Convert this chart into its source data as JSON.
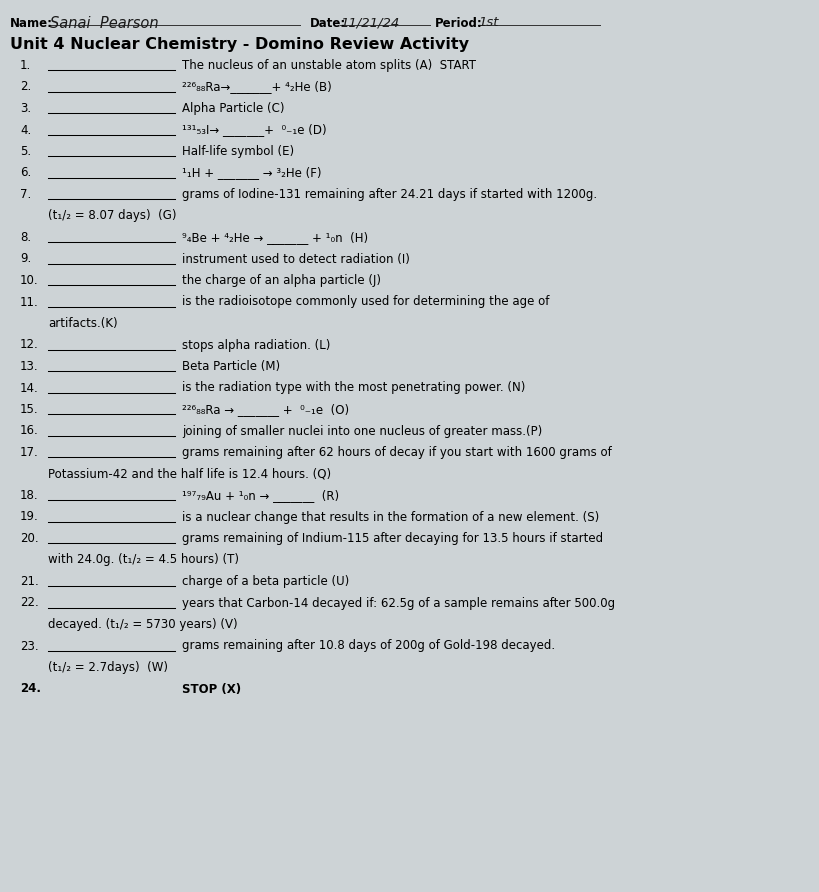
{
  "bg_color": "#cdd3d6",
  "title": "Unit 4 Nuclear Chemistry - Domino Review Activity",
  "name_handwritten": "Sanai  Pearson",
  "date_handwritten": "11/21/24",
  "period_handwritten": "1st",
  "items": [
    {
      "n": "1.",
      "text": "The nucleus of an unstable atom splits (A)  START",
      "has_blank": true,
      "cont": null
    },
    {
      "n": "2.",
      "text": "²²⁶₈₈Ra→_______+ ⁴₂He (B)",
      "has_blank": true,
      "cont": null
    },
    {
      "n": "3.",
      "text": "Alpha Particle (C)",
      "has_blank": true,
      "cont": null
    },
    {
      "n": "4.",
      "text": "¹³¹₅₃I→ _______+  ⁰₋₁e (D)",
      "has_blank": true,
      "cont": null
    },
    {
      "n": "5.",
      "text": "Half-life symbol (E)",
      "has_blank": true,
      "cont": null
    },
    {
      "n": "6.",
      "text": "¹₁H + _______ → ³₂He (F)",
      "has_blank": true,
      "cont": null
    },
    {
      "n": "7.",
      "text": "grams of Iodine-131 remaining after 24.21 days if started with 1200g.",
      "has_blank": true,
      "cont": "(t₁/₂ = 8.07 days)  (G)"
    },
    {
      "n": "8.",
      "text": "⁹₄Be + ⁴₂He → _______ + ¹₀n  (H)",
      "has_blank": true,
      "cont": null
    },
    {
      "n": "9.",
      "text": "instrument used to detect radiation (I)",
      "has_blank": true,
      "cont": null
    },
    {
      "n": "10.",
      "text": "the charge of an alpha particle (J)",
      "has_blank": true,
      "cont": null
    },
    {
      "n": "11.",
      "text": "is the radioisotope commonly used for determining the age of",
      "has_blank": true,
      "cont": "artifacts.(K)"
    },
    {
      "n": "12.",
      "text": "stops alpha radiation. (L)",
      "has_blank": true,
      "cont": null
    },
    {
      "n": "13.",
      "text": "Beta Particle (M)",
      "has_blank": true,
      "cont": null
    },
    {
      "n": "14.",
      "text": "is the radiation type with the most penetrating power. (N)",
      "has_blank": true,
      "cont": null
    },
    {
      "n": "15.",
      "text": "²²⁶₈₈Ra → _______ +  ⁰₋₁e  (O)",
      "has_blank": true,
      "cont": null
    },
    {
      "n": "16.",
      "text": "joining of smaller nuclei into one nucleus of greater mass.(P)",
      "has_blank": true,
      "cont": null
    },
    {
      "n": "17.",
      "text": "grams remaining after 62 hours of decay if you start with 1600 grams of",
      "has_blank": true,
      "cont": "Potassium-42 and the half life is 12.4 hours. (Q)"
    },
    {
      "n": "18.",
      "text": "¹⁹⁷₇₉Au + ¹₀n → _______  (R)",
      "has_blank": true,
      "cont": null
    },
    {
      "n": "19.",
      "text": "is a nuclear change that results in the formation of a new element. (S)",
      "has_blank": true,
      "cont": null
    },
    {
      "n": "20.",
      "text": "grams remaining of Indium-115 after decaying for 13.5 hours if started",
      "has_blank": true,
      "cont": "with 24.0g. (t₁/₂ = 4.5 hours) (T)"
    },
    {
      "n": "21.",
      "text": "charge of a beta particle (U)",
      "has_blank": true,
      "cont": null
    },
    {
      "n": "22.",
      "text": "years that Carbon-14 decayed if: 62.5g of a sample remains after 500.0g",
      "has_blank": true,
      "cont": "decayed. (t₁/₂ = 5730 years) (V)"
    },
    {
      "n": "23.",
      "text": "grams remaining after 10.8 days of 200g of Gold-198 decayed.",
      "has_blank": true,
      "cont": "(t₁/₂ = 2.7days)  (W)"
    },
    {
      "n": "24.",
      "text": "STOP (X)",
      "has_blank": false,
      "cont": null,
      "bold": true
    }
  ]
}
